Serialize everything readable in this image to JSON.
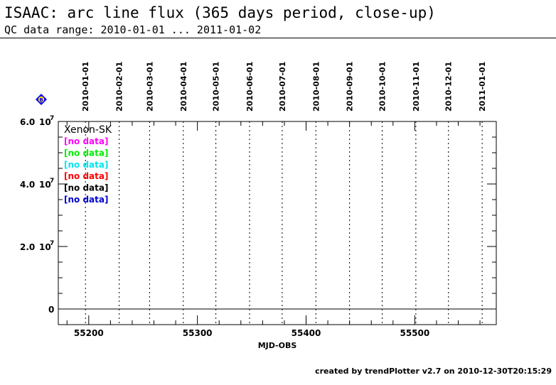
{
  "header": {
    "title": "ISAAC: arc line flux (365 days period, close-up)",
    "subtitle": "QC data range: 2010-01-01 ... 2011-01-02"
  },
  "footer": {
    "text": "created by trendPlotter v2.7 on 2010-12-30T20:15:29"
  },
  "marker": {
    "icon": "diamond-icon",
    "glyph": "B",
    "color": "#0000ff",
    "fill": "#ffd700"
  },
  "chart_data": {
    "type": "scatter",
    "title": "",
    "xlabel": "MJD-OBS",
    "ylabel": "",
    "xlim": [
      55172,
      55575
    ],
    "ylim": [
      -5000000,
      60000000
    ],
    "grid": false,
    "x_ticks": [
      55200,
      55300,
      55400,
      55500
    ],
    "y_ticks": [
      {
        "value": 60000000,
        "mantissa": "6.0",
        "base": "10",
        "exp": "7"
      },
      {
        "value": 40000000,
        "mantissa": "4.0",
        "base": "10",
        "exp": "7"
      },
      {
        "value": 20000000,
        "mantissa": "2.0",
        "base": "10",
        "exp": "7"
      },
      {
        "value": 0,
        "mantissa": "0",
        "base": "",
        "exp": ""
      }
    ],
    "zero_line": 0,
    "date_markers": [
      {
        "label": "2010-01-01",
        "mjd": 55197
      },
      {
        "label": "2010-02-01",
        "mjd": 55228
      },
      {
        "label": "2010-03-01",
        "mjd": 55256
      },
      {
        "label": "2010-04-01",
        "mjd": 55287
      },
      {
        "label": "2010-05-01",
        "mjd": 55317
      },
      {
        "label": "2010-06-01",
        "mjd": 55348
      },
      {
        "label": "2010-07-01",
        "mjd": 55378
      },
      {
        "label": "2010-08-01",
        "mjd": 55409
      },
      {
        "label": "2010-09-01",
        "mjd": 55440
      },
      {
        "label": "2010-10-01",
        "mjd": 55470
      },
      {
        "label": "2010-11-01",
        "mjd": 55501
      },
      {
        "label": "2010-12-01",
        "mjd": 55531
      },
      {
        "label": "2011-01-01",
        "mjd": 55562
      }
    ],
    "legend": {
      "title": "Xenon-SK",
      "placement": "top-left",
      "entries": [
        {
          "text": "[no data]",
          "color": "#ff00ff"
        },
        {
          "text": "[no data]",
          "color": "#00ee00"
        },
        {
          "text": "[no data]",
          "color": "#00e5ee"
        },
        {
          "text": "[no data]",
          "color": "#ff0000"
        },
        {
          "text": "[no data]",
          "color": "#000000"
        },
        {
          "text": "[no data]",
          "color": "#0000cc"
        }
      ]
    },
    "series": []
  }
}
